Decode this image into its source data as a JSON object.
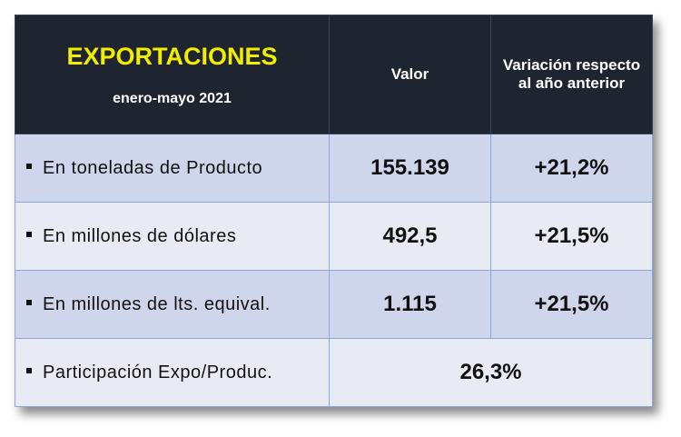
{
  "header": {
    "title": "EXPORTACIONES",
    "subtitle": "enero-mayo 2021",
    "columns": [
      "Valor",
      "Variación respecto al año anterior"
    ]
  },
  "table": {
    "rows": [
      [
        "En toneladas de Producto",
        "155.139",
        "+21,2%"
      ],
      [
        "En millones de dólares",
        "492,5",
        "+21,5%"
      ],
      [
        "En millones de lts. equival.",
        "1.115",
        "+21,5%"
      ],
      [
        "Participación Expo/Produc.",
        "26,3%"
      ]
    ]
  }
}
